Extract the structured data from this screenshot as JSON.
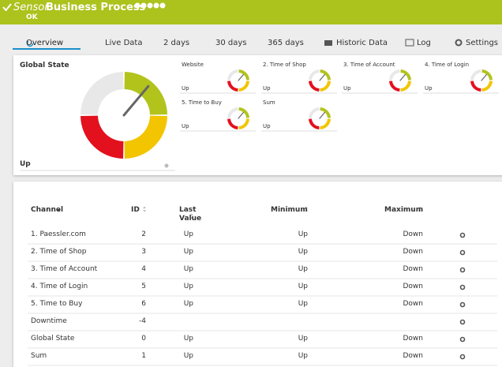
{
  "header": {
    "sensor_label": "Sensor",
    "title": "Business Process",
    "status": "OK"
  },
  "tabs": [
    "Overview",
    "Live Data",
    "2  days",
    "30 days",
    "365 days",
    "Historic Data",
    "Log",
    "Settings"
  ],
  "global_state": {
    "title": "Global State",
    "value": "Up"
  },
  "gauges": [
    {
      "name": "Website",
      "value": "Up"
    },
    {
      "name": "2. Time of Shop",
      "value": "Up"
    },
    {
      "name": "3. Time of Account",
      "value": "Up"
    },
    {
      "name": "4. Time of Login",
      "value": "Up"
    },
    {
      "name": "5. Time to Buy",
      "value": "Up"
    },
    {
      "name": "Sum",
      "value": "Up"
    }
  ],
  "table": {
    "columns": [
      "Channel",
      "ID",
      "Last Value",
      "Minimum",
      "Maximum"
    ],
    "rows": [
      [
        "1. Paessler.com",
        2,
        "Up",
        "Up",
        "Down"
      ],
      [
        "2. Time of Shop",
        3,
        "Up",
        "Up",
        "Down"
      ],
      [
        "3. Time of Account",
        4,
        "Up",
        "Up",
        "Down"
      ],
      [
        "4. Time of Login",
        5,
        "Up",
        "Up",
        "Down"
      ],
      [
        "5. Time to Buy",
        6,
        "Up",
        "Up",
        "Down"
      ],
      [
        "Downtime",
        -4,
        null,
        null,
        null
      ],
      [
        "Global State",
        0,
        "Up",
        "Up",
        "Down"
      ],
      [
        "Sum",
        1,
        "Up",
        "Up",
        "Down"
      ]
    ]
  }
}
